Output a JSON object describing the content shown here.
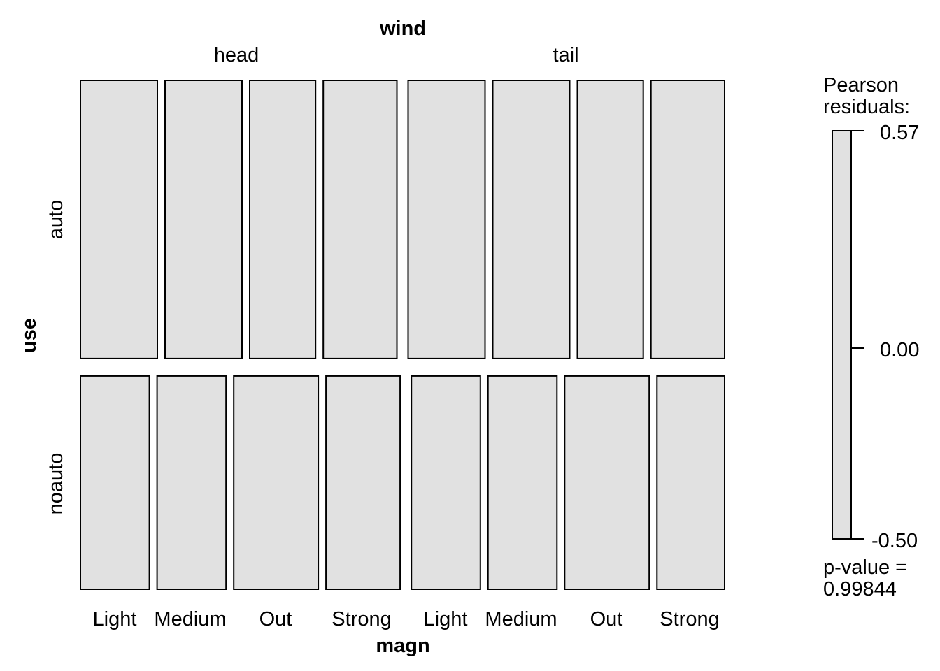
{
  "chart_data": {
    "type": "mosaic",
    "column_variable": "wind",
    "row_variable": "use",
    "bottom_variable": "magn",
    "wind_levels": [
      "head",
      "tail"
    ],
    "use_levels": [
      "auto",
      "noauto"
    ],
    "magn_levels": [
      "Light",
      "Medium",
      "Out",
      "Strong",
      "Light",
      "Medium",
      "Out",
      "Strong"
    ],
    "cells": [
      {
        "use": "auto",
        "wind": "head",
        "magn": "Light",
        "proportion": 0.118
      },
      {
        "use": "auto",
        "wind": "head",
        "magn": "Medium",
        "proportion": 0.118
      },
      {
        "use": "auto",
        "wind": "head",
        "magn": "Out",
        "proportion": 0.101
      },
      {
        "use": "auto",
        "wind": "head",
        "magn": "Strong",
        "proportion": 0.113
      },
      {
        "use": "auto",
        "wind": "tail",
        "magn": "Light",
        "proportion": 0.118
      },
      {
        "use": "auto",
        "wind": "tail",
        "magn": "Medium",
        "proportion": 0.118
      },
      {
        "use": "auto",
        "wind": "tail",
        "magn": "Out",
        "proportion": 0.101
      },
      {
        "use": "auto",
        "wind": "tail",
        "magn": "Strong",
        "proportion": 0.113
      },
      {
        "use": "noauto",
        "wind": "head",
        "magn": "Light",
        "proportion": 0.106
      },
      {
        "use": "noauto",
        "wind": "head",
        "magn": "Medium",
        "proportion": 0.106
      },
      {
        "use": "noauto",
        "wind": "head",
        "magn": "Out",
        "proportion": 0.13
      },
      {
        "use": "noauto",
        "wind": "head",
        "magn": "Strong",
        "proportion": 0.114
      },
      {
        "use": "noauto",
        "wind": "tail",
        "magn": "Light",
        "proportion": 0.106
      },
      {
        "use": "noauto",
        "wind": "tail",
        "magn": "Medium",
        "proportion": 0.106
      },
      {
        "use": "noauto",
        "wind": "tail",
        "magn": "Out",
        "proportion": 0.13
      },
      {
        "use": "noauto",
        "wind": "tail",
        "magn": "Strong",
        "proportion": 0.104
      }
    ],
    "row_proportions": {
      "auto": 0.566,
      "noauto": 0.434
    },
    "tile_color": "#e1e1e1",
    "legend": {
      "title_line1": "Pearson",
      "title_line2": "residuals:",
      "max": "0.57",
      "mid": "0.00",
      "min": "-0.50",
      "p_value_label": "p-value =",
      "p_value": "0.99844"
    }
  }
}
